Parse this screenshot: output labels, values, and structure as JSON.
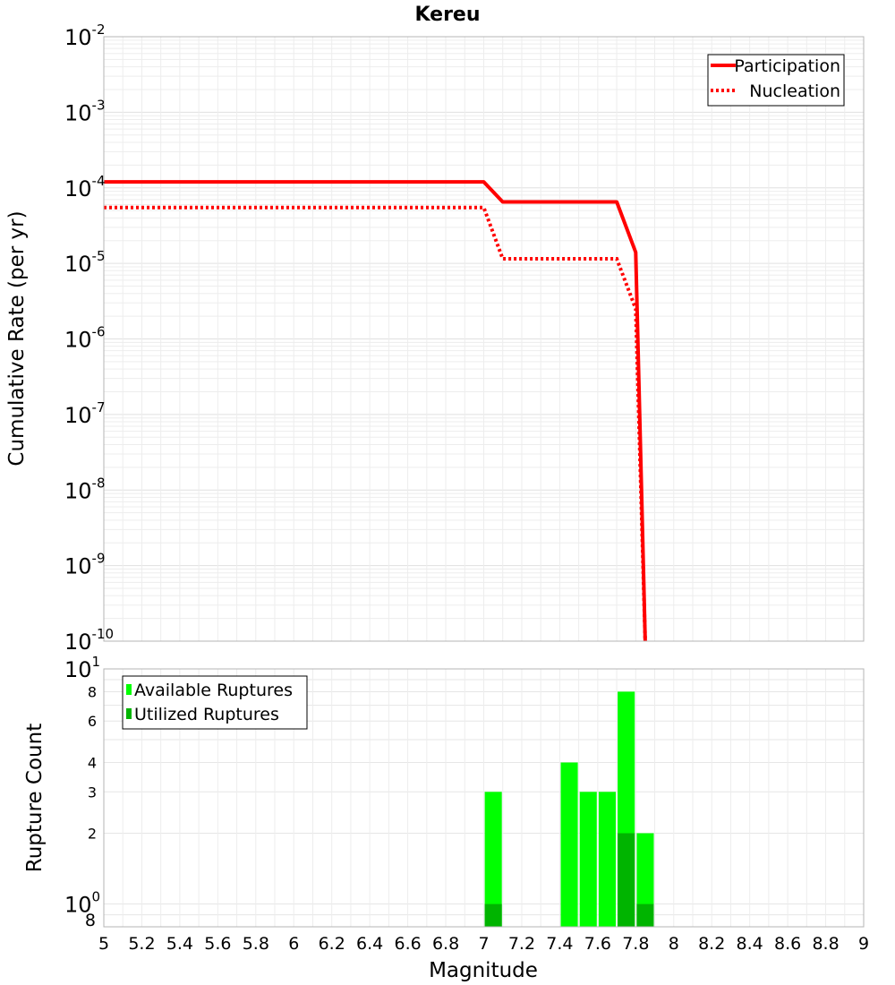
{
  "chart_data": [
    {
      "type": "line",
      "title": "Kereu",
      "xlabel": "",
      "ylabel": "Cumulative Rate (per yr)",
      "y_scale": "log",
      "xlim": [
        5,
        9
      ],
      "ylim": [
        1e-10,
        0.01
      ],
      "y_ticks": [
        {
          "base": "10",
          "exp": "-2"
        },
        {
          "base": "10",
          "exp": "-3"
        },
        {
          "base": "10",
          "exp": "-4"
        },
        {
          "base": "10",
          "exp": "-5"
        },
        {
          "base": "10",
          "exp": "-6"
        },
        {
          "base": "10",
          "exp": "-7"
        },
        {
          "base": "10",
          "exp": "-8"
        },
        {
          "base": "10",
          "exp": "-9"
        },
        {
          "base": "10",
          "exp": "-10"
        }
      ],
      "grid": true,
      "legend_position": "top-right",
      "series": [
        {
          "name": "Participation",
          "color": "#ff0000",
          "dash": "solid",
          "x": [
            5.0,
            7.0,
            7.1,
            7.7,
            7.8,
            7.85
          ],
          "y": [
            0.00012,
            0.00012,
            6.5e-05,
            6.5e-05,
            1.4e-05,
            1e-10
          ]
        },
        {
          "name": "Nucleation",
          "color": "#ff0000",
          "dash": "dotted",
          "x": [
            5.0,
            7.0,
            7.1,
            7.7,
            7.8,
            7.85
          ],
          "y": [
            5.5e-05,
            5.5e-05,
            1.15e-05,
            1.15e-05,
            2.5e-06,
            1e-10
          ]
        }
      ]
    },
    {
      "type": "bar",
      "title": "",
      "xlabel": "Magnitude",
      "ylabel": "Rupture Count",
      "y_scale": "log",
      "xlim": [
        5,
        9
      ],
      "ylim": [
        0.8,
        10
      ],
      "bar_width": 0.09,
      "x_ticks": [
        "5",
        "5.2",
        "5.4",
        "5.6",
        "5.8",
        "6",
        "6.2",
        "6.4",
        "6.6",
        "6.8",
        "7",
        "7.2",
        "7.4",
        "7.6",
        "7.8",
        "8",
        "8.2",
        "8.4",
        "8.6",
        "8.8",
        "9"
      ],
      "y_major_ticks": [
        {
          "value": 10,
          "base": "10",
          "exp": "1"
        },
        {
          "value": 1,
          "base": "10",
          "exp": "0"
        }
      ],
      "y_minor_ticks": [
        {
          "value": 8,
          "label": "8"
        },
        {
          "value": 6,
          "label": "6"
        },
        {
          "value": 4,
          "label": "4"
        },
        {
          "value": 3,
          "label": "3"
        },
        {
          "value": 2,
          "label": "2"
        },
        {
          "value": 0.8,
          "label": "8"
        }
      ],
      "grid": true,
      "legend_position": "top-left",
      "series": [
        {
          "name": "Available Ruptures",
          "color": "#00ff00",
          "x": [
            7.05,
            7.45,
            7.55,
            7.65,
            7.75,
            7.85
          ],
          "values": [
            3,
            4,
            3,
            3,
            8,
            2
          ]
        },
        {
          "name": "Utilized Ruptures",
          "color": "#00b400",
          "x": [
            7.05,
            7.75,
            7.85
          ],
          "values": [
            1,
            2,
            1
          ]
        }
      ]
    }
  ]
}
